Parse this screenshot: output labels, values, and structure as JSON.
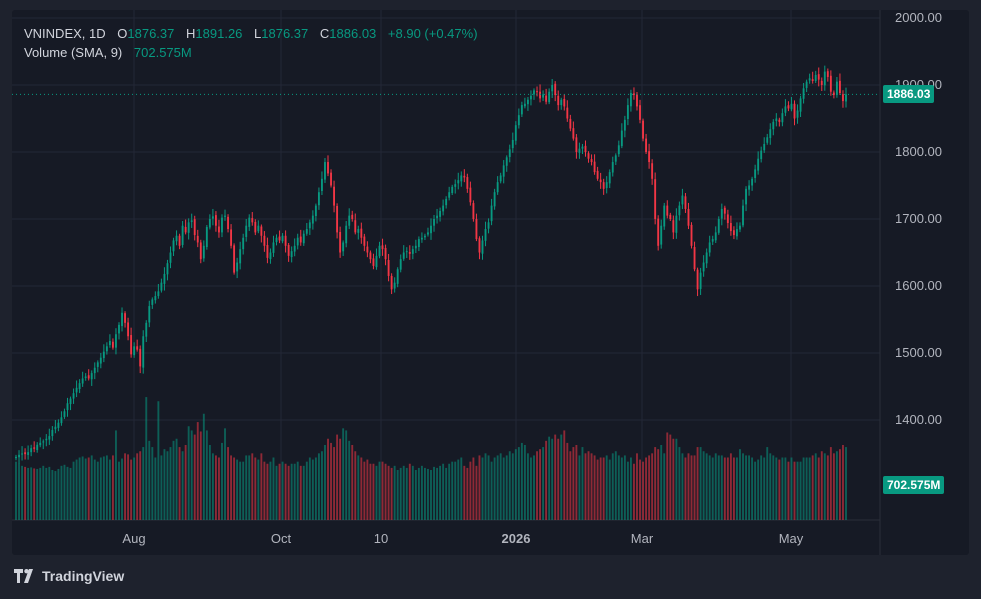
{
  "legend": {
    "symbol": "VNINDEX, 1D",
    "o_label": "O",
    "o_value": "1876.37",
    "h_label": "H",
    "h_value": "1891.26",
    "l_label": "L",
    "l_value": "1876.37",
    "c_label": "C",
    "c_value": "1886.03",
    "change": "+8.90 (+0.47%)",
    "volume_label": "Volume (SMA, 9)",
    "volume_value": "702.575M"
  },
  "brand": {
    "name": "TradingView",
    "icon": "tradingview-logo-icon"
  },
  "colors": {
    "up": "#089981",
    "down": "#f23645",
    "background": "#161a25",
    "grid": "#232836",
    "text": "#b2b5be"
  },
  "chart_data": {
    "type": "candlestick",
    "interval": "1D",
    "ylim": [
      1340,
      2010
    ],
    "y_ticks": [
      "2000.00",
      "1900.00",
      "1800.00",
      "1700.00",
      "1600.00",
      "1500.00",
      "1400.00"
    ],
    "x_ticks": [
      "Aug",
      "Oct",
      "10",
      "2026",
      "Mar",
      "May"
    ],
    "last_price_label": "1886.03",
    "volume_sma_label": "702.575M",
    "grid": true,
    "closes": [
      1345,
      1348,
      1350,
      1349,
      1352,
      1358,
      1357,
      1363,
      1366,
      1368,
      1372,
      1376,
      1385,
      1390,
      1396,
      1404,
      1413,
      1425,
      1432,
      1440,
      1448,
      1455,
      1462,
      1465,
      1462,
      1470,
      1478,
      1486,
      1493,
      1502,
      1510,
      1518,
      1508,
      1528,
      1542,
      1560,
      1545,
      1525,
      1498,
      1510,
      1505,
      1480,
      1525,
      1545,
      1570,
      1580,
      1585,
      1592,
      1605,
      1618,
      1634,
      1650,
      1668,
      1675,
      1660,
      1690,
      1680,
      1695,
      1698,
      1676,
      1665,
      1640,
      1660,
      1688,
      1700,
      1704,
      1690,
      1680,
      1702,
      1705,
      1685,
      1660,
      1620,
      1635,
      1655,
      1672,
      1690,
      1702,
      1695,
      1680,
      1690,
      1675,
      1660,
      1642,
      1650,
      1665,
      1672,
      1668,
      1675,
      1660,
      1645,
      1652,
      1660,
      1672,
      1665,
      1678,
      1685,
      1695,
      1705,
      1720,
      1740,
      1760,
      1785,
      1768,
      1750,
      1720,
      1680,
      1650,
      1665,
      1690,
      1705,
      1700,
      1680,
      1685,
      1672,
      1660,
      1650,
      1640,
      1630,
      1645,
      1660,
      1655,
      1640,
      1615,
      1595,
      1605,
      1625,
      1640,
      1650,
      1652,
      1648,
      1655,
      1660,
      1670,
      1672,
      1675,
      1680,
      1690,
      1700,
      1705,
      1712,
      1720,
      1730,
      1740,
      1748,
      1752,
      1758,
      1765,
      1762,
      1745,
      1725,
      1700,
      1670,
      1650,
      1668,
      1685,
      1695,
      1720,
      1740,
      1755,
      1765,
      1780,
      1792,
      1804,
      1818,
      1840,
      1855,
      1870,
      1872,
      1878,
      1884,
      1892,
      1890,
      1880,
      1886,
      1875,
      1890,
      1900,
      1885,
      1870,
      1878,
      1868,
      1850,
      1835,
      1820,
      1800,
      1805,
      1808,
      1800,
      1790,
      1785,
      1770,
      1760,
      1755,
      1745,
      1755,
      1770,
      1785,
      1795,
      1810,
      1832,
      1848,
      1870,
      1888,
      1885,
      1868,
      1848,
      1820,
      1800,
      1785,
      1760,
      1700,
      1660,
      1690,
      1720,
      1705,
      1700,
      1680,
      1705,
      1720,
      1735,
      1715,
      1690,
      1660,
      1625,
      1595,
      1620,
      1635,
      1650,
      1665,
      1670,
      1680,
      1700,
      1715,
      1708,
      1694,
      1682,
      1676,
      1685,
      1690,
      1720,
      1745,
      1750,
      1760,
      1774,
      1790,
      1802,
      1812,
      1822,
      1834,
      1845,
      1850,
      1845,
      1858,
      1868,
      1865,
      1872,
      1850,
      1862,
      1880,
      1895,
      1905,
      1910,
      1906,
      1915,
      1908,
      1900,
      1920,
      1912,
      1890,
      1885,
      1905,
      1888,
      1876,
      1886
    ],
    "volumes": [
      560,
      540,
      520,
      510,
      500,
      505,
      495,
      490,
      500,
      520,
      500,
      510,
      480,
      470,
      490,
      520,
      530,
      510,
      500,
      560,
      580,
      600,
      610,
      590,
      600,
      620,
      580,
      560,
      600,
      610,
      620,
      580,
      620,
      860,
      560,
      590,
      640,
      630,
      580,
      600,
      640,
      660,
      700,
      1180,
      760,
      700,
      600,
      1140,
      620,
      680,
      660,
      700,
      760,
      780,
      700,
      660,
      720,
      900,
      860,
      820,
      940,
      850,
      1020,
      860,
      720,
      640,
      620,
      600,
      740,
      880,
      700,
      620,
      600,
      580,
      560,
      560,
      620,
      620,
      640,
      600,
      580,
      640,
      560,
      540,
      560,
      600,
      520,
      540,
      560,
      540,
      520,
      540,
      540,
      560,
      520,
      520,
      560,
      600,
      580,
      600,
      640,
      660,
      720,
      780,
      740,
      700,
      820,
      780,
      880,
      860,
      760,
      720,
      660,
      620,
      600,
      560,
      580,
      540,
      540,
      520,
      560,
      560,
      540,
      520,
      500,
      520,
      480,
      500,
      520,
      500,
      540,
      520,
      480,
      500,
      520,
      500,
      490,
      480,
      510,
      500,
      520,
      540,
      500,
      540,
      560,
      560,
      580,
      600,
      520,
      500,
      560,
      600,
      520,
      620,
      600,
      640,
      620,
      560,
      600,
      620,
      640,
      600,
      620,
      660,
      640,
      680,
      700,
      740,
      720,
      640,
      600,
      620,
      660,
      680,
      700,
      760,
      800,
      780,
      820,
      780,
      820,
      860,
      740,
      660,
      700,
      720,
      620,
      700,
      640,
      660,
      640,
      620,
      580,
      600,
      600,
      620,
      580,
      640,
      660,
      620,
      600,
      620,
      560,
      600,
      540,
      640,
      580,
      560,
      600,
      620,
      640,
      700,
      680,
      720,
      640,
      840,
      820,
      780,
      780,
      700,
      640,
      600,
      640,
      620,
      620,
      700,
      700,
      660,
      640,
      620,
      600,
      640,
      620,
      620,
      600,
      600,
      640,
      600,
      600,
      680,
      640,
      620,
      620,
      600,
      560,
      580,
      620,
      600,
      700,
      640,
      620,
      600,
      580,
      600,
      600,
      560,
      600,
      560,
      560,
      560,
      600,
      600,
      600,
      620,
      640,
      600,
      660,
      640,
      620,
      700,
      640,
      660,
      680,
      720,
      700,
      680,
      700,
      720,
      660,
      640,
      620,
      600,
      580
    ],
    "y_up_volume_ylim": [
      0,
      3300
    ]
  }
}
